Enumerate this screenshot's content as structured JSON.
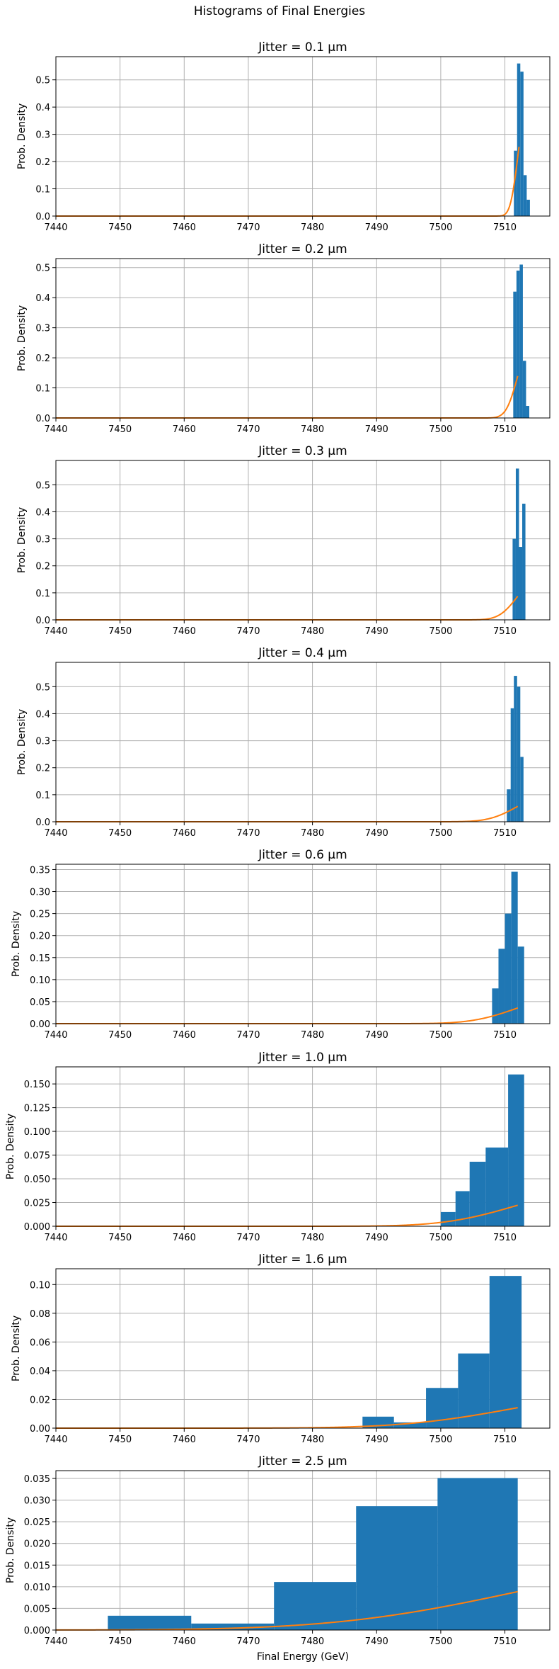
{
  "figure": {
    "title": "Histograms of Final Energies"
  },
  "shared": {
    "xlabel": "Final Energy (GeV)",
    "ylabel": "Prob. Density",
    "xlim": [
      7440,
      7517
    ],
    "xticks": [
      7440,
      7450,
      7460,
      7470,
      7480,
      7490,
      7500,
      7510
    ],
    "colors": {
      "histogram": "#1f77b4",
      "fit": "#ff7f0e",
      "grid": "#b0b0b0"
    }
  },
  "chart_data": [
    {
      "type": "bar",
      "title": "Jitter =  0.1 μm",
      "xlabel": "",
      "ylabel": "Prob. Density",
      "xlim": [
        7440,
        7517
      ],
      "ylim": [
        0,
        0.585
      ],
      "yticks": [
        0.0,
        0.1,
        0.2,
        0.3,
        0.4,
        0.5
      ],
      "yticklabels": [
        "0.0",
        "0.1",
        "0.2",
        "0.3",
        "0.4",
        "0.5"
      ],
      "grid": true,
      "histogram": {
        "bin_edges": [
          7511.4,
          7511.9,
          7512.4,
          7512.9,
          7513.4,
          7513.9
        ],
        "values": [
          0.24,
          0.56,
          0.53,
          0.15,
          0.06
        ]
      },
      "fit_curve": {
        "type": "line",
        "mean": 7512.0,
        "sigma": 0.92,
        "x_end": 7512.2
      }
    },
    {
      "type": "bar",
      "title": "Jitter =  0.2 μm",
      "xlabel": "",
      "ylabel": "Prob. Density",
      "xlim": [
        7440,
        7517
      ],
      "ylim": [
        0,
        0.53
      ],
      "yticks": [
        0.0,
        0.1,
        0.2,
        0.3,
        0.4,
        0.5
      ],
      "yticklabels": [
        "0.0",
        "0.1",
        "0.2",
        "0.3",
        "0.4",
        "0.5"
      ],
      "grid": true,
      "histogram": {
        "bin_edges": [
          7511.3,
          7511.8,
          7512.3,
          7512.8,
          7513.3,
          7513.8
        ],
        "values": [
          0.42,
          0.49,
          0.51,
          0.19,
          0.04
        ]
      },
      "fit_curve": {
        "type": "line",
        "mean": 7512.0,
        "sigma": 1.43,
        "x_end": 7512.0
      }
    },
    {
      "type": "bar",
      "title": "Jitter =  0.3 μm",
      "xlabel": "",
      "ylabel": "Prob. Density",
      "xlim": [
        7440,
        7517
      ],
      "ylim": [
        0,
        0.59
      ],
      "yticks": [
        0.0,
        0.1,
        0.2,
        0.3,
        0.4,
        0.5
      ],
      "yticklabels": [
        "0.0",
        "0.1",
        "0.2",
        "0.3",
        "0.4",
        "0.5"
      ],
      "grid": true,
      "histogram": {
        "bin_edges": [
          7511.2,
          7511.7,
          7512.2,
          7512.7,
          7513.2
        ],
        "values": [
          0.3,
          0.56,
          0.27,
          0.43
        ]
      },
      "fit_curve": {
        "type": "line",
        "mean": 7512.0,
        "sigma": 2.28,
        "x_end": 7512.0
      }
    },
    {
      "type": "bar",
      "title": "Jitter =  0.4 μm",
      "xlabel": "",
      "ylabel": "Prob. Density",
      "xlim": [
        7440,
        7517
      ],
      "ylim": [
        0,
        0.59
      ],
      "yticks": [
        0.0,
        0.1,
        0.2,
        0.3,
        0.4,
        0.5
      ],
      "yticklabels": [
        "0.0",
        "0.1",
        "0.2",
        "0.3",
        "0.4",
        "0.5"
      ],
      "grid": true,
      "histogram": {
        "bin_edges": [
          7510.3,
          7510.9,
          7511.4,
          7511.9,
          7512.4,
          7512.9
        ],
        "values": [
          0.12,
          0.42,
          0.54,
          0.5,
          0.24
        ]
      },
      "fit_curve": {
        "type": "line",
        "mean": 7512.0,
        "sigma": 3.5,
        "x_end": 7512.0
      }
    },
    {
      "type": "bar",
      "title": "Jitter =  0.6 μm",
      "xlabel": "",
      "ylabel": "Prob. Density",
      "xlim": [
        7440,
        7517
      ],
      "ylim": [
        0,
        0.362
      ],
      "yticks": [
        0.0,
        0.05,
        0.1,
        0.15,
        0.2,
        0.25,
        0.3,
        0.35
      ],
      "yticklabels": [
        "0.00",
        "0.05",
        "0.10",
        "0.15",
        "0.20",
        "0.25",
        "0.30",
        "0.35"
      ],
      "grid": true,
      "histogram": {
        "bin_edges": [
          7508.0,
          7509.0,
          7510.0,
          7511.0,
          7512.0,
          7513.0
        ],
        "values": [
          0.08,
          0.17,
          0.25,
          0.345,
          0.175
        ]
      },
      "fit_curve": {
        "type": "line",
        "mean": 7512.0,
        "sigma": 5.6,
        "x_end": 7512.0
      }
    },
    {
      "type": "bar",
      "title": "Jitter =  1.0 μm",
      "xlabel": "",
      "ylabel": "Prob. Density",
      "xlim": [
        7440,
        7517
      ],
      "ylim": [
        0,
        0.168
      ],
      "yticks": [
        0.0,
        0.025,
        0.05,
        0.075,
        0.1,
        0.125,
        0.15
      ],
      "yticklabels": [
        "0.000",
        "0.025",
        "0.050",
        "0.075",
        "0.100",
        "0.125",
        "0.150"
      ],
      "grid": true,
      "histogram": {
        "bin_edges": [
          7500.0,
          7502.3,
          7504.5,
          7507.0,
          7510.5,
          7513.0
        ],
        "values": [
          0.015,
          0.037,
          0.068,
          0.083,
          0.16
        ]
      },
      "fit_curve": {
        "type": "line",
        "mean": 7512.0,
        "sigma": 9.0,
        "x_end": 7512.0
      }
    },
    {
      "type": "bar",
      "title": "Jitter =  1.6 μm",
      "xlabel": "",
      "ylabel": "Prob. Density",
      "xlim": [
        7440,
        7517
      ],
      "ylim": [
        0,
        0.111
      ],
      "yticks": [
        0.0,
        0.02,
        0.04,
        0.06,
        0.08,
        0.1
      ],
      "yticklabels": [
        "0.00",
        "0.02",
        "0.04",
        "0.06",
        "0.08",
        "0.10"
      ],
      "grid": true,
      "histogram": {
        "bin_edges": [
          7487.8,
          7492.7,
          7497.7,
          7502.7,
          7507.6,
          7512.6
        ],
        "values": [
          0.008,
          0.004,
          0.028,
          0.052,
          0.106
        ]
      },
      "fit_curve": {
        "type": "line",
        "mean": 7512.0,
        "sigma": 14.0,
        "x_end": 7512.0
      }
    },
    {
      "type": "bar",
      "title": "Jitter =  2.5 μm",
      "xlabel": "Final Energy (GeV)",
      "ylabel": "Prob. Density",
      "xlim": [
        7440,
        7517
      ],
      "ylim": [
        0,
        0.0368
      ],
      "yticks": [
        0.0,
        0.005,
        0.01,
        0.015,
        0.02,
        0.025,
        0.03,
        0.035
      ],
      "yticklabels": [
        "0.000",
        "0.005",
        "0.010",
        "0.015",
        "0.020",
        "0.025",
        "0.030",
        "0.035"
      ],
      "grid": true,
      "histogram": {
        "bin_edges": [
          7448.1,
          7461.1,
          7474.0,
          7486.8,
          7499.5,
          7512.0
        ],
        "values": [
          0.0033,
          0.0015,
          0.0111,
          0.0286,
          0.0351
        ]
      },
      "fit_curve": {
        "type": "line",
        "mean": 7512.0,
        "sigma": 22.5,
        "x_end": 7512.0
      }
    }
  ]
}
